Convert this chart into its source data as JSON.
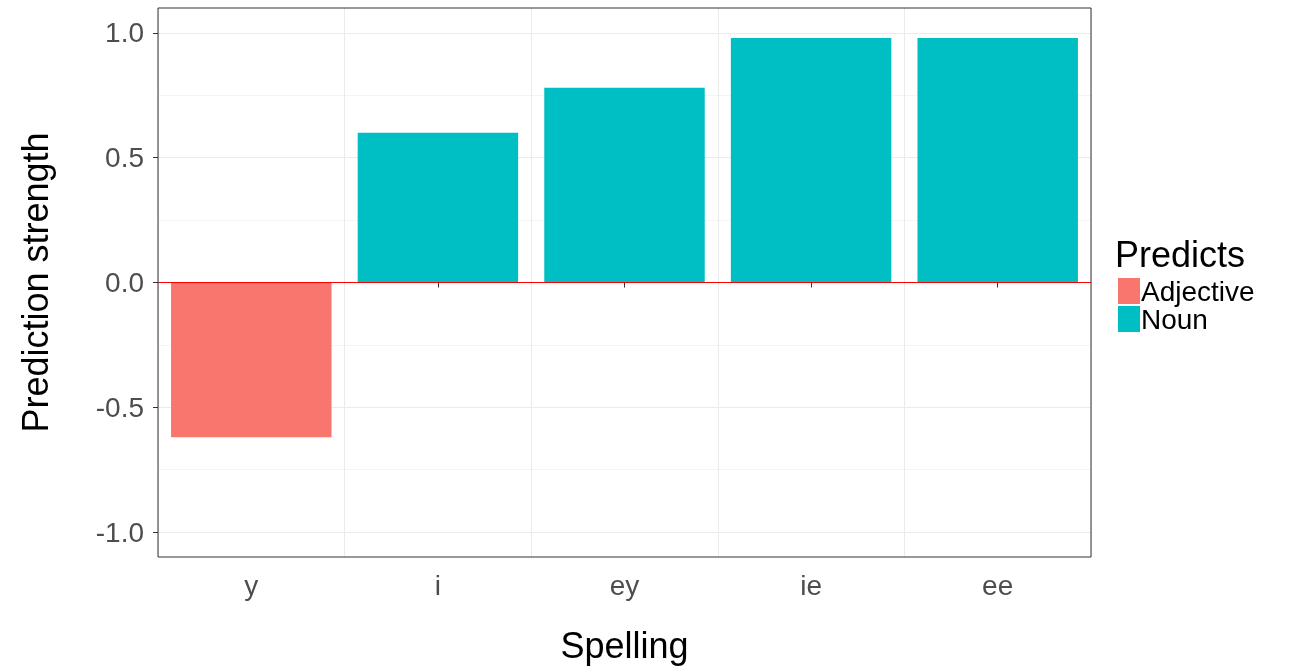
{
  "chart_data": {
    "type": "bar",
    "xlabel": "Spelling",
    "ylabel": "Prediction strength",
    "legend_title": "Predicts",
    "categories": [
      "y",
      "i",
      "ey",
      "ie",
      "ee"
    ],
    "series": [
      {
        "name": "Adjective",
        "color": "#f8766d",
        "values": [
          -0.62,
          null,
          null,
          null,
          null
        ]
      },
      {
        "name": "Noun",
        "color": "#00bfc4",
        "values": [
          null,
          0.6,
          0.78,
          0.98,
          0.98
        ]
      }
    ],
    "ylim": [
      -1.1,
      1.1
    ],
    "yticks": [
      {
        "value": -1,
        "label": "-1.0"
      },
      {
        "value": -0.5,
        "label": "-0.5"
      },
      {
        "value": 0,
        "label": "0.0"
      },
      {
        "value": 0.5,
        "label": "0.5"
      },
      {
        "value": 1,
        "label": "1.0"
      }
    ],
    "ref_lines": [
      {
        "axis": "y",
        "value": 0,
        "color": "#ff0000"
      }
    ],
    "grid": true,
    "legend": "right"
  }
}
